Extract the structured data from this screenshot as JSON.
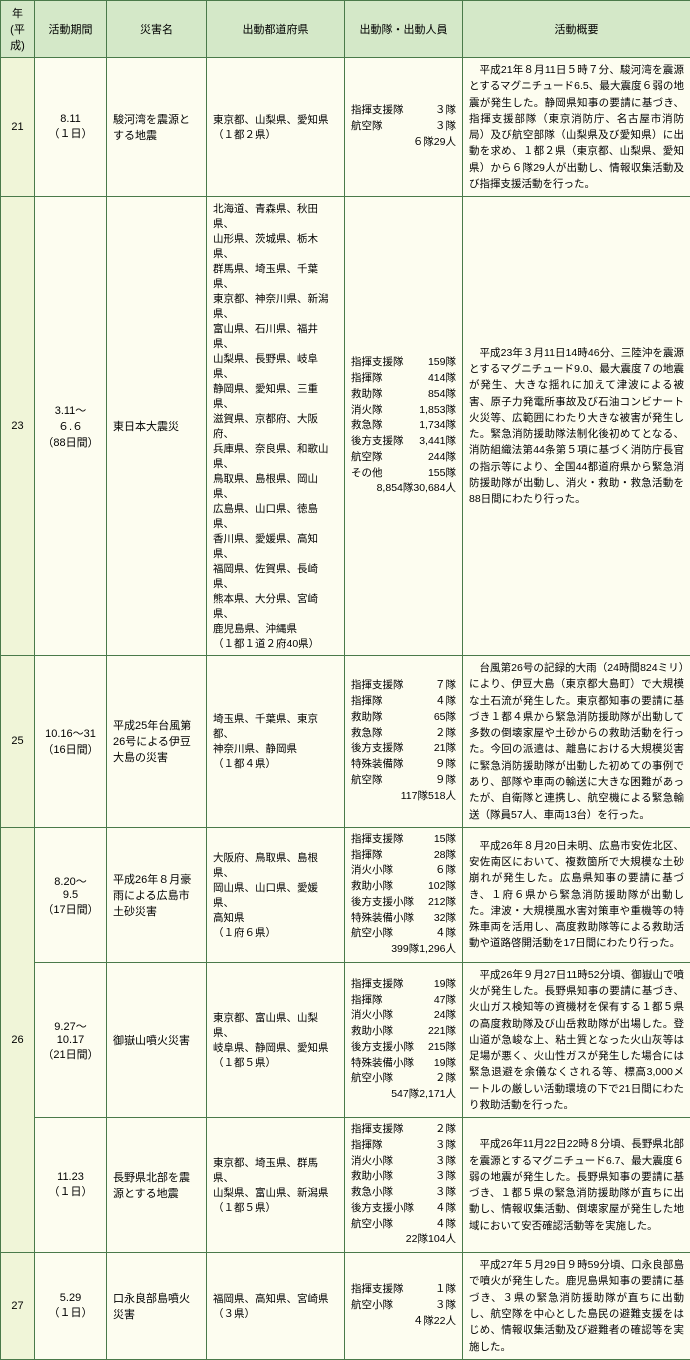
{
  "headers": {
    "year": "年\n(平成)",
    "period": "活動期間",
    "disaster": "災害名",
    "pref": "出動都道府県",
    "teams": "出動隊・出動人員",
    "summary": "活動概要"
  },
  "rows": [
    {
      "year": "21",
      "yearRowspan": 1,
      "period": "8.11\n（１日）",
      "disaster": "駿河湾を震源とする地震",
      "pref_lines": [
        "東京都、山梨県、愛知県",
        "（１都２県）"
      ],
      "team_lines": [
        {
          "l": "指揮支援隊",
          "r": "３隊"
        },
        {
          "l": "航空隊",
          "r": "３隊"
        }
      ],
      "team_total": "６隊29人",
      "summary": "平成21年８月11日５時７分、駿河湾を震源とするマグニチュード6.5、最大震度６弱の地震が発生した。静岡県知事の要請に基づき、指揮支援部隊（東京消防庁、名古屋市消防局）及び航空部隊（山梨県及び愛知県）に出動を求め、１都２県（東京都、山梨県、愛知県）から６隊29人が出動し、情報収集活動及び指揮支援活動を行った。"
    },
    {
      "year": "23",
      "yearRowspan": 1,
      "period": "3.11〜\n６.６\n（88日間）",
      "disaster": "東日本大震災",
      "pref_lines": [
        "北海道、青森県、秋田県、",
        "山形県、茨城県、栃木県、",
        "群馬県、埼玉県、千葉県、",
        "東京都、神奈川県、新潟県、",
        "富山県、石川県、福井県、",
        "山梨県、長野県、岐阜県、",
        "静岡県、愛知県、三重県、",
        "滋賀県、京都府、大阪府、",
        "兵庫県、奈良県、和歌山県、",
        "鳥取県、島根県、岡山県、",
        "広島県、山口県、徳島県、",
        "香川県、愛媛県、高知県、",
        "福岡県、佐賀県、長崎県、",
        "熊本県、大分県、宮崎県、",
        "鹿児島県、沖縄県",
        "（１都１道２府40県）"
      ],
      "team_lines": [
        {
          "l": "指揮支援隊",
          "r": "159隊"
        },
        {
          "l": "指揮隊",
          "r": "414隊"
        },
        {
          "l": "救助隊",
          "r": "854隊"
        },
        {
          "l": "消火隊",
          "r": "1,853隊"
        },
        {
          "l": "救急隊",
          "r": "1,734隊"
        },
        {
          "l": "後方支援隊",
          "r": "3,441隊"
        },
        {
          "l": "航空隊",
          "r": "244隊"
        },
        {
          "l": "その他",
          "r": "155隊"
        }
      ],
      "team_total": "8,854隊30,684人",
      "summary": "平成23年３月11日14時46分、三陸沖を震源とするマグニチュード9.0、最大震度７の地震が発生、大きな揺れに加えて津波による被害、原子力発電所事故及び石油コンビナート火災等、広範囲にわたり大きな被害が発生した。緊急消防援助隊法制化後初めてとなる、消防組織法第44条第５項に基づく消防庁長官の指示等により、全国44都道府県から緊急消防援助隊が出動し、消火・救助・救急活動を88日間にわたり行った。"
    },
    {
      "year": "25",
      "yearRowspan": 1,
      "period": "10.16〜31\n（16日間）",
      "disaster": "平成25年台風第26号による伊豆大島の災害",
      "pref_lines": [
        "埼玉県、千葉県、東京都、",
        "神奈川県、静岡県",
        "（１都４県）"
      ],
      "team_lines": [
        {
          "l": "指揮支援隊",
          "r": "７隊"
        },
        {
          "l": "指揮隊",
          "r": "４隊"
        },
        {
          "l": "救助隊",
          "r": "65隊"
        },
        {
          "l": "救急隊",
          "r": "２隊"
        },
        {
          "l": "後方支援隊",
          "r": "21隊"
        },
        {
          "l": "特殊装備隊",
          "r": "９隊"
        },
        {
          "l": "航空隊",
          "r": "９隊"
        }
      ],
      "team_total": "117隊518人",
      "summary": "台風第26号の記録的大雨（24時間824ミリ）により、伊豆大島（東京都大島町）で大規模な土石流が発生した。東京都知事の要請に基づき１都４県から緊急消防援助隊が出動して多数の倒壊家屋や土砂からの救助活動を行った。今回の派遣は、離島における大規模災害に緊急消防援助隊が出動した初めての事例であり、部隊や車両の輸送に大きな困難があったが、自衛隊と連携し、航空機による緊急輸送（隊員57人、車両13台）を行った。"
    },
    {
      "year": "26",
      "yearRowspan": 3,
      "period": "8.20〜\n9.5\n（17日間）",
      "disaster": "平成26年８月豪雨による広島市土砂災害",
      "pref_lines": [
        "大阪府、鳥取県、島根県、",
        "岡山県、山口県、愛媛県、",
        "高知県",
        "（１府６県）"
      ],
      "team_lines": [
        {
          "l": "指揮支援隊",
          "r": "15隊"
        },
        {
          "l": "指揮隊",
          "r": "28隊"
        },
        {
          "l": "消火小隊",
          "r": "６隊"
        },
        {
          "l": "救助小隊",
          "r": "102隊"
        },
        {
          "l": "後方支援小隊",
          "r": "212隊"
        },
        {
          "l": "特殊装備小隊",
          "r": "32隊"
        },
        {
          "l": "航空小隊",
          "r": "４隊"
        }
      ],
      "team_total": "399隊1,296人",
      "summary": "平成26年８月20日未明、広島市安佐北区、安佐南区において、複数箇所で大規模な土砂崩れが発生した。広島県知事の要請に基づき、１府６県から緊急消防援助隊が出動した。津波・大規模風水害対策車や重機等の特殊車両を活用し、高度救助隊等による救助活動や道路啓開活動を17日間にわたり行った。"
    },
    {
      "period": "9.27〜\n10.17\n（21日間）",
      "disaster": "御嶽山噴火災害",
      "pref_lines": [
        "東京都、富山県、山梨県、",
        "岐阜県、静岡県、愛知県",
        "（１都５県）"
      ],
      "team_lines": [
        {
          "l": "指揮支援隊",
          "r": "19隊"
        },
        {
          "l": "指揮隊",
          "r": "47隊"
        },
        {
          "l": "消火小隊",
          "r": "24隊"
        },
        {
          "l": "救助小隊",
          "r": "221隊"
        },
        {
          "l": "後方支援小隊",
          "r": "215隊"
        },
        {
          "l": "特殊装備小隊",
          "r": "19隊"
        },
        {
          "l": "航空小隊",
          "r": "２隊"
        }
      ],
      "team_total": "547隊2,171人",
      "summary": "平成26年９月27日11時52分頃、御嶽山で噴火が発生した。長野県知事の要請に基づき、火山ガス検知等の資機材を保有する１都５県の高度救助隊及び山岳救助隊が出場した。登山道が急峻な上、粘土質となった火山灰等は足場が悪く、火山性ガスが発生した場合には緊急退避を余儀なくされる等、標高3,000メートルの厳しい活動環境の下で21日間にわたり救助活動を行った。"
    },
    {
      "period": "11.23\n（１日）",
      "disaster": "長野県北部を震源とする地震",
      "pref_lines": [
        "東京都、埼玉県、群馬県、",
        "山梨県、富山県、新潟県",
        "（１都５県）"
      ],
      "team_lines": [
        {
          "l": "指揮支援隊",
          "r": "２隊"
        },
        {
          "l": "指揮隊",
          "r": "３隊"
        },
        {
          "l": "消火小隊",
          "r": "３隊"
        },
        {
          "l": "救助小隊",
          "r": "３隊"
        },
        {
          "l": "救急小隊",
          "r": "３隊"
        },
        {
          "l": "後方支援小隊",
          "r": "４隊"
        },
        {
          "l": "航空小隊",
          "r": "４隊"
        }
      ],
      "team_total": "22隊104人",
      "summary": "平成26年11月22日22時８分頃、長野県北部を震源とするマグニチュード6.7、最大震度６弱の地震が発生した。長野県知事の要請に基づき、１都５県の緊急消防援助隊が直ちに出動し、情報収集活動、倒壊家屋が発生した地域において安否確認活動等を実施した。"
    },
    {
      "year": "27",
      "yearRowspan": 1,
      "period": "5.29\n（１日）",
      "disaster": "口永良部島噴火災害",
      "pref_lines": [
        "福岡県、高知県、宮崎県",
        "（３県）"
      ],
      "team_lines": [
        {
          "l": "指揮支援隊",
          "r": "１隊"
        },
        {
          "l": "航空小隊",
          "r": "３隊"
        }
      ],
      "team_total": "４隊22人",
      "summary": "平成27年５月29日９時59分頃、口永良部島で噴火が発生した。鹿児島県知事の要請に基づき、３県の緊急消防援助隊が直ちに出動し、航空隊を中心とした島民の避難支援をはじめ、情報収集活動及び避難者の確認等を実施した。"
    }
  ]
}
